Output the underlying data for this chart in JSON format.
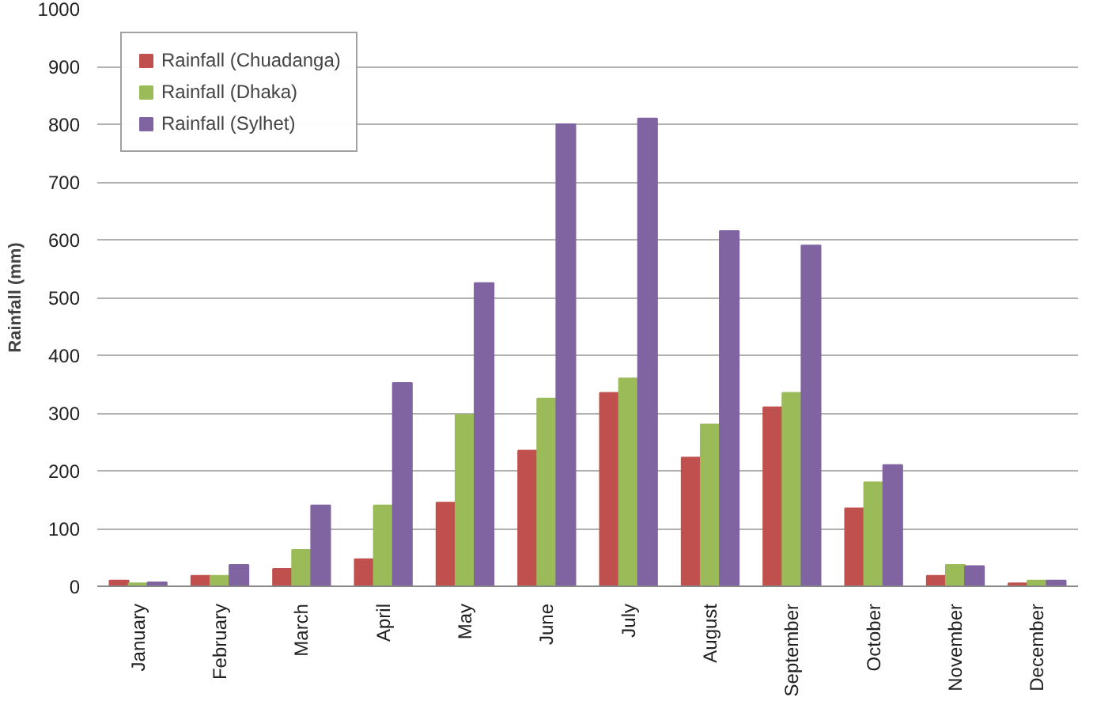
{
  "chart_data": {
    "type": "bar",
    "ylabel": "Rainfall (mm)",
    "categories": [
      "January",
      "February",
      "March",
      "April",
      "May",
      "June",
      "July",
      "August",
      "September",
      "October",
      "November",
      "December"
    ],
    "series": [
      {
        "name": "Rainfall (Chuadanga)",
        "color": "#c0504d",
        "values": [
          10,
          18,
          30,
          47,
          145,
          235,
          335,
          223,
          310,
          135,
          18,
          5
        ]
      },
      {
        "name": "Rainfall (Dhaka)",
        "color": "#9bbb59",
        "values": [
          5,
          18,
          63,
          140,
          297,
          325,
          360,
          280,
          335,
          180,
          37,
          10
        ]
      },
      {
        "name": "Rainfall (Sylhet)",
        "color": "#8064a2",
        "values": [
          7,
          37,
          140,
          352,
          525,
          800,
          810,
          615,
          590,
          210,
          35,
          10
        ]
      }
    ],
    "ylim": [
      0,
      1000
    ],
    "yticks": [
      0,
      100,
      200,
      300,
      400,
      500,
      600,
      700,
      800,
      900,
      1000
    ],
    "grid": "y",
    "legend": "top left"
  }
}
